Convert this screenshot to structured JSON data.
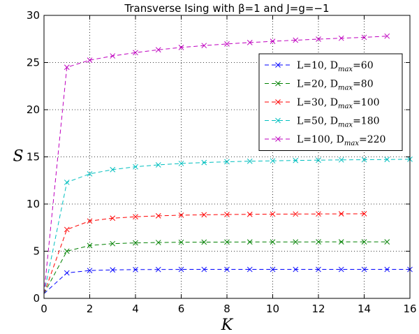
{
  "chart_data": {
    "type": "line",
    "title": "Transverse Ising with β=1 and J=g=−1",
    "xlabel": "K",
    "ylabel": "S",
    "xlim": [
      0,
      16
    ],
    "ylim": [
      0,
      30
    ],
    "xticks": [
      0,
      2,
      4,
      6,
      8,
      10,
      12,
      14,
      16
    ],
    "yticks": [
      0,
      5,
      10,
      15,
      20,
      25,
      30
    ],
    "grid": true,
    "legend_position": "upper-right",
    "series": [
      {
        "name": "L=10, Dmax=60",
        "label_main": "L=10, D",
        "label_sub": "max",
        "label_tail": "=60",
        "color": "#0000ff",
        "x": [
          0,
          1,
          2,
          3,
          4,
          5,
          6,
          7,
          8,
          9,
          10,
          11,
          12,
          13,
          14,
          15,
          16
        ],
        "y": [
          0.5,
          2.7,
          2.95,
          3.02,
          3.05,
          3.06,
          3.07,
          3.07,
          3.07,
          3.07,
          3.07,
          3.07,
          3.07,
          3.07,
          3.07,
          3.07,
          3.07
        ]
      },
      {
        "name": "L=20, Dmax=80",
        "label_main": "L=20, D",
        "label_sub": "max",
        "label_tail": "=80",
        "color": "#008000",
        "x": [
          0,
          1,
          2,
          3,
          4,
          5,
          6,
          7,
          8,
          9,
          10,
          11,
          12,
          13,
          14,
          15
        ],
        "y": [
          0.5,
          5.0,
          5.6,
          5.8,
          5.88,
          5.92,
          5.95,
          5.96,
          5.97,
          5.98,
          5.98,
          5.98,
          5.99,
          5.99,
          5.99,
          5.99
        ]
      },
      {
        "name": "L=30, Dmax=100",
        "label_main": "L=30, D",
        "label_sub": "max",
        "label_tail": "=100",
        "color": "#ff0000",
        "x": [
          0,
          1,
          2,
          3,
          4,
          5,
          6,
          7,
          8,
          9,
          10,
          11,
          12,
          13,
          14
        ],
        "y": [
          0.5,
          7.3,
          8.2,
          8.5,
          8.65,
          8.75,
          8.82,
          8.86,
          8.89,
          8.91,
          8.93,
          8.94,
          8.95,
          8.96,
          8.97
        ]
      },
      {
        "name": "L=50, Dmax=180",
        "label_main": "L=50, D",
        "label_sub": "max",
        "label_tail": "=180",
        "color": "#00bfbf",
        "x": [
          0,
          1,
          2,
          3,
          4,
          5,
          6,
          7,
          8,
          9,
          10,
          11,
          12,
          13,
          14,
          15,
          16
        ],
        "y": [
          0.5,
          12.3,
          13.2,
          13.65,
          13.95,
          14.15,
          14.3,
          14.4,
          14.48,
          14.54,
          14.58,
          14.62,
          14.65,
          14.68,
          14.7,
          14.72,
          14.75
        ]
      },
      {
        "name": "L=100, Dmax=220",
        "label_main": "L=100, D",
        "label_sub": "max",
        "label_tail": "=220",
        "color": "#bf00bf",
        "x": [
          0,
          1,
          2,
          3,
          4,
          5,
          6,
          7,
          8,
          9,
          10,
          11,
          12,
          13,
          14,
          15
        ],
        "y": [
          0.5,
          24.5,
          25.25,
          25.7,
          26.05,
          26.35,
          26.6,
          26.8,
          26.97,
          27.12,
          27.25,
          27.37,
          27.48,
          27.58,
          27.67,
          27.8
        ]
      }
    ]
  }
}
